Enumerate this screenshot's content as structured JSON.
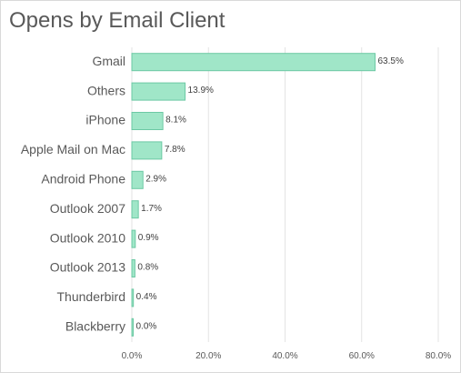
{
  "chart_data": {
    "type": "bar",
    "orientation": "horizontal",
    "title": "Opens by Email Client",
    "categories": [
      "Gmail",
      "Others",
      "iPhone",
      "Apple Mail on Mac",
      "Android Phone",
      "Outlook 2007",
      "Outlook 2010",
      "Outlook 2013",
      "Thunderbird",
      "Blackberry"
    ],
    "values": [
      63.5,
      13.9,
      8.1,
      7.8,
      2.9,
      1.7,
      0.9,
      0.8,
      0.4,
      0.0
    ],
    "value_labels": [
      "63.5%",
      "13.9%",
      "8.1%",
      "7.8%",
      "2.9%",
      "1.7%",
      "0.9%",
      "0.8%",
      "0.4%",
      "0.0%"
    ],
    "xlim": [
      0,
      80
    ],
    "xticks": [
      0,
      20,
      40,
      60,
      80
    ],
    "xtick_labels": [
      "0.0%",
      "20.0%",
      "40.0%",
      "60.0%",
      "80.0%"
    ],
    "xlabel": "",
    "ylabel": "",
    "grid": true,
    "legend": "none",
    "colors": {
      "bar_fill": "#a0e6c8",
      "bar_stroke": "#6cc9a4",
      "grid": "#e3e3e3"
    }
  }
}
